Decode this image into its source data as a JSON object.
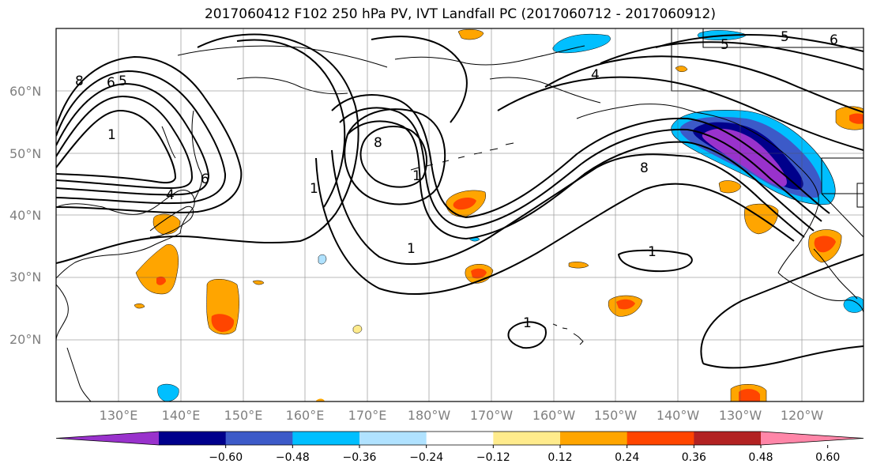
{
  "title": "2017060412 F102 250 hPa PV, IVT Landfall PC (2017060712 - 2017060912)",
  "map": {
    "projection": "cylindrical",
    "lon_range": [
      120,
      -110
    ],
    "lat_range": [
      10,
      70
    ],
    "lat_ticks": [
      {
        "value": 20,
        "label": "20°N"
      },
      {
        "value": 30,
        "label": "30°N"
      },
      {
        "value": 40,
        "label": "40°N"
      },
      {
        "value": 50,
        "label": "50°N"
      },
      {
        "value": 60,
        "label": "60°N"
      }
    ],
    "lon_ticks": [
      {
        "value": 130,
        "label": "130°E"
      },
      {
        "value": 140,
        "label": "140°E"
      },
      {
        "value": 150,
        "label": "150°E"
      },
      {
        "value": 160,
        "label": "160°E"
      },
      {
        "value": 170,
        "label": "170°E"
      },
      {
        "value": 180,
        "label": "180°W"
      },
      {
        "value": -170,
        "label": "170°W"
      },
      {
        "value": -160,
        "label": "160°W"
      },
      {
        "value": -150,
        "label": "150°W"
      },
      {
        "value": -140,
        "label": "140°W"
      },
      {
        "value": -130,
        "label": "130°W"
      },
      {
        "value": -120,
        "label": "120°W"
      }
    ],
    "gridlines": true,
    "contour_labels": [
      "8",
      "6",
      "5",
      "1",
      "4",
      "6",
      "8",
      "1",
      "1",
      "1",
      "8",
      "4",
      "1",
      "1",
      "5",
      "6",
      "5"
    ]
  },
  "colorbar": {
    "extend": "both",
    "colors": [
      "#9932cc",
      "#00008b",
      "#3c5ac8",
      "#00bfff",
      "#b0e2ff",
      "#ffffff",
      "#ffeb8c",
      "#ffa500",
      "#ff4500",
      "#b22222",
      "#ff86a8"
    ],
    "tick_labels": [
      "−0.60",
      "−0.48",
      "−0.36",
      "−0.24",
      "−0.12",
      "0.12",
      "0.24",
      "0.36",
      "0.48",
      "0.60"
    ]
  }
}
